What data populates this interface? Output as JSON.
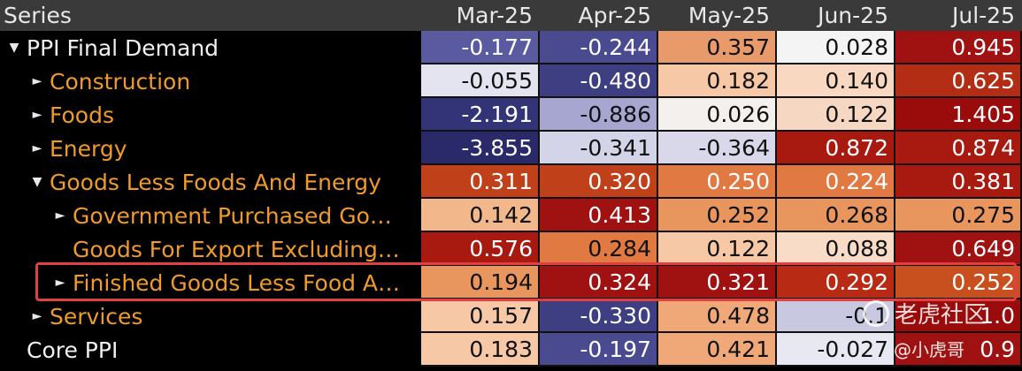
{
  "header": {
    "series_label": "Series",
    "columns": [
      "Mar-25",
      "Apr-25",
      "May-25",
      "Jun-25",
      "Jul-25"
    ]
  },
  "rows": [
    {
      "label": "PPI Final Demand",
      "indent": 0,
      "marker": "▼",
      "color": "white",
      "values": [
        "-0.177",
        "-0.244",
        "0.357",
        "0.028",
        "0.945"
      ],
      "bg": [
        "#5a5aa0",
        "#4a4a90",
        "#e89a6a",
        "#f4f4f4",
        "#a01212"
      ],
      "fg": [
        "#fff",
        "#fff",
        "#111",
        "#111",
        "#fff"
      ]
    },
    {
      "label": "Construction",
      "indent": 1,
      "marker": "►",
      "color": "orange",
      "values": [
        "-0.055",
        "-0.480",
        "0.182",
        "0.140",
        "0.625"
      ],
      "bg": [
        "#e4e4f0",
        "#3e3e82",
        "#f6c8a6",
        "#f8d8c0",
        "#b32c14"
      ],
      "fg": [
        "#111",
        "#fff",
        "#111",
        "#111",
        "#fff"
      ]
    },
    {
      "label": "Foods",
      "indent": 1,
      "marker": "►",
      "color": "orange",
      "values": [
        "-2.191",
        "-0.886",
        "0.026",
        "0.122",
        "1.405"
      ],
      "bg": [
        "#333378",
        "#a6a6d0",
        "#f4f0ee",
        "#f6d8c2",
        "#9a0c0c"
      ],
      "fg": [
        "#fff",
        "#111",
        "#111",
        "#111",
        "#fff"
      ]
    },
    {
      "label": "Energy",
      "indent": 1,
      "marker": "►",
      "color": "orange",
      "values": [
        "-3.855",
        "-0.341",
        "-0.364",
        "0.872",
        "0.874"
      ],
      "bg": [
        "#2a2a6a",
        "#d4d4e8",
        "#d8d8ea",
        "#a81a10",
        "#a81a10"
      ],
      "fg": [
        "#fff",
        "#111",
        "#111",
        "#fff",
        "#fff"
      ]
    },
    {
      "label": "Goods Less Foods And Energy",
      "indent": 1,
      "marker": "▼",
      "color": "orange",
      "values": [
        "0.311",
        "0.320",
        "0.250",
        "0.224",
        "0.381"
      ],
      "bg": [
        "#c0401a",
        "#c0401a",
        "#e07a42",
        "#e07a42",
        "#a81a10"
      ],
      "fg": [
        "#fff",
        "#fff",
        "#fff",
        "#fff",
        "#fff"
      ]
    },
    {
      "label": "Government Purchased Go…",
      "indent": 2,
      "marker": "►",
      "color": "orange",
      "values": [
        "0.142",
        "0.413",
        "0.252",
        "0.268",
        "0.275"
      ],
      "bg": [
        "#f2b88c",
        "#a01212",
        "#e8965e",
        "#e8965e",
        "#e8965e"
      ],
      "fg": [
        "#111",
        "#fff",
        "#111",
        "#111",
        "#111"
      ]
    },
    {
      "label": "Goods For Export Excluding…",
      "indent": 2,
      "marker": "",
      "color": "orange",
      "values": [
        "0.576",
        "0.284",
        "0.122",
        "0.088",
        "0.649"
      ],
      "bg": [
        "#a81a10",
        "#e07a42",
        "#f6c8a6",
        "#f8dcc8",
        "#a01212"
      ],
      "fg": [
        "#fff",
        "#111",
        "#111",
        "#111",
        "#fff"
      ]
    },
    {
      "label": "Finished Goods Less Food A…",
      "indent": 2,
      "marker": "►",
      "color": "orange",
      "values": [
        "0.194",
        "0.324",
        "0.321",
        "0.292",
        "0.252"
      ],
      "bg": [
        "#e8965e",
        "#a01212",
        "#a01212",
        "#b82a14",
        "#c8501e"
      ],
      "fg": [
        "#111",
        "#fff",
        "#fff",
        "#fff",
        "#fff"
      ]
    },
    {
      "label": "Services",
      "indent": 1,
      "marker": "►",
      "color": "orange",
      "values": [
        "0.157",
        "-0.330",
        "0.478",
        "-0.1",
        "1.0"
      ],
      "bg": [
        "#f6c8a6",
        "#3e3e82",
        "#f0a878",
        "#c8c8e0",
        "#9a0c0c"
      ],
      "fg": [
        "#111",
        "#fff",
        "#111",
        "#111",
        "#fff"
      ]
    },
    {
      "label": "Core PPI",
      "indent": 0,
      "marker": "",
      "color": "white",
      "values": [
        "0.183",
        "-0.197",
        "0.421",
        "-0.027",
        "0.9"
      ],
      "bg": [
        "#f6c8a6",
        "#4a4a90",
        "#f0a878",
        "#e8e8f2",
        "#a01212"
      ],
      "fg": [
        "#111",
        "#fff",
        "#111",
        "#111",
        "#fff"
      ]
    }
  ],
  "watermark": {
    "brand": "老虎社区",
    "handle": "@小虎哥"
  }
}
